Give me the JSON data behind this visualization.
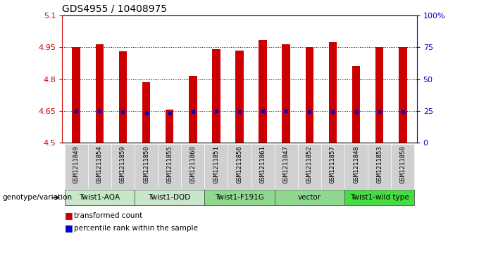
{
  "title": "GDS4955 / 10408975",
  "samples": [
    "GSM1211849",
    "GSM1211854",
    "GSM1211859",
    "GSM1211850",
    "GSM1211855",
    "GSM1211860",
    "GSM1211851",
    "GSM1211856",
    "GSM1211861",
    "GSM1211847",
    "GSM1211852",
    "GSM1211857",
    "GSM1211848",
    "GSM1211853",
    "GSM1211858"
  ],
  "bar_values": [
    4.95,
    4.965,
    4.93,
    4.785,
    4.655,
    4.815,
    4.94,
    4.935,
    4.985,
    4.965,
    4.95,
    4.975,
    4.86,
    4.95,
    4.95
  ],
  "dot_values": [
    4.65,
    4.65,
    4.645,
    4.64,
    4.64,
    4.645,
    4.65,
    4.648,
    4.65,
    4.65,
    4.648,
    4.648,
    4.648,
    4.648,
    4.648
  ],
  "ylim_left": [
    4.5,
    5.1
  ],
  "ylim_right": [
    0,
    100
  ],
  "yticks_left": [
    4.5,
    4.65,
    4.8,
    4.95,
    5.1
  ],
  "ytick_labels_left": [
    "4.5",
    "4.65",
    "4.8",
    "4.95",
    "5.1"
  ],
  "yticks_right": [
    0,
    25,
    50,
    75,
    100
  ],
  "ytick_labels_right": [
    "0",
    "25",
    "50",
    "75",
    "100%"
  ],
  "hlines": [
    4.65,
    4.8,
    4.95
  ],
  "groups": [
    {
      "label": "Twist1-AQA",
      "start": 0,
      "end": 3
    },
    {
      "label": "Twist1-DQD",
      "start": 3,
      "end": 6
    },
    {
      "label": "Twist1-F191G",
      "start": 6,
      "end": 9
    },
    {
      "label": "vector",
      "start": 9,
      "end": 12
    },
    {
      "label": "Twist1-wild type",
      "start": 12,
      "end": 15
    }
  ],
  "group_colors": [
    "#c8e6c8",
    "#c8e6c8",
    "#90d890",
    "#90d890",
    "#44dd44"
  ],
  "bar_color": "#cc0000",
  "dot_color": "#0000cc",
  "bg_color": "#ffffff",
  "label_color_red": "#cc0000",
  "label_color_blue": "#0000cc",
  "sample_bg": "#d0d0d0",
  "xlabel_bottom": "genotype/variation",
  "legend_red": "transformed count",
  "legend_blue": "percentile rank within the sample"
}
